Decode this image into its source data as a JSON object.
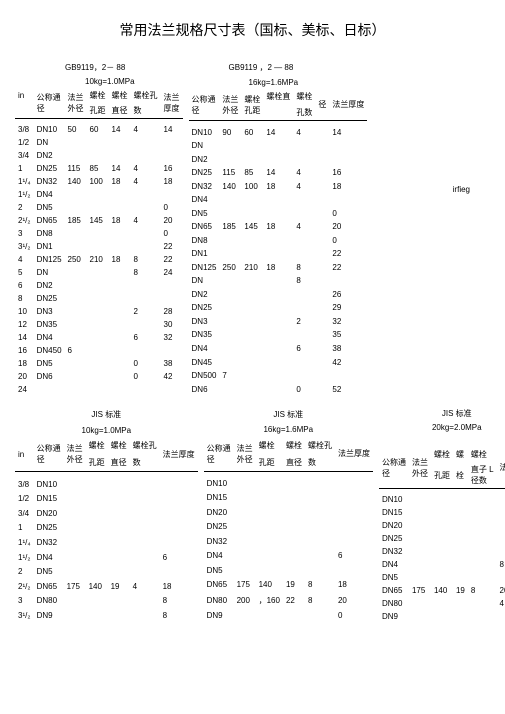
{
  "title": "常用法兰规格尺寸表（国标、美标、日标）",
  "irf": "irfieg",
  "standards": {
    "gb1": {
      "name": "GB9119，2－ 88",
      "pressure": "10kg=1.0MPa"
    },
    "gb2": {
      "name": "GB9119 ，2 — 88",
      "pressure": "16kg=1.6MPa"
    },
    "jis1": {
      "name": "JIS 标准",
      "pressure": "10kg=1.0MPa"
    },
    "jis2": {
      "name": "JIS 标准",
      "pressure": "16kg=1.6MPa"
    },
    "jis3": {
      "name": "JIS 标准",
      "pressure": "20kg=2.0MPa"
    }
  },
  "hdr": {
    "in": "in",
    "dn": "公称通径",
    "flange_od": "法兰外径",
    "bolt_pitch": "螺栓孔距",
    "bolt_dia": "螺栓直径",
    "bolt_n": "螺栓孔数",
    "thick": "法兰厚度",
    "a": "a",
    "bolt": "螺栓",
    "bolt_hole": "螺栓孔",
    "hole_n": "孔数",
    "bolt_hole_dia": "螺栓直径",
    "bolt_hole_pitch": "孔距",
    "bolt_l": "直子 L",
    "bolt_dia_n": "径数"
  },
  "rows_gb1": [
    {
      "in": "3/8",
      "dn": "DN10",
      "a": "50",
      "b": "60",
      "c": "14",
      "d": "4",
      "e": "14"
    },
    {
      "in": "1/2",
      "dn": "DN"
    },
    {
      "in": "3/4",
      "dn": "DN2"
    },
    {
      "in": "1",
      "dn": "DN25",
      "a": "115",
      "b": "85",
      "c": "14",
      "d": "4",
      "e": "16"
    },
    {
      "in": "1¹/₄",
      "dn": "DN32",
      "a": "140",
      "b": "100",
      "c": "18",
      "d": "4",
      "e": "18"
    },
    {
      "in": "1¹/₂",
      "dn": "DN4"
    },
    {
      "in": "2",
      "dn": "DN5",
      "e": "0"
    },
    {
      "in": "2¹/₂",
      "dn": "DN65",
      "a": "185",
      "b": "145",
      "c": "18",
      "d": "4",
      "e": "20"
    },
    {
      "in": "3",
      "dn": "DN8",
      "e": "0"
    },
    {
      "in": "3¹/₂",
      "dn": "DN1",
      "e": "22"
    },
    {
      "in": "4",
      "dn": "DN125",
      "a": "250",
      "b": "210",
      "c": "18",
      "d": "8",
      "e": "22"
    },
    {
      "in": "5",
      "dn": "DN",
      "d": "8",
      "e": "24"
    },
    {
      "in": "6",
      "dn": "DN2"
    },
    {
      "in": "8",
      "dn": "DN25"
    },
    {
      "in": "10",
      "dn": "DN3",
      "d": "2",
      "e": "28"
    },
    {
      "in": "12",
      "dn": "DN35",
      "e": "30"
    },
    {
      "in": "14",
      "dn": "DN4",
      "d": "6",
      "e": "32"
    },
    {
      "in": "16",
      "dn": "DN450",
      "a": "6"
    },
    {
      "in": "18",
      "dn": "DN5",
      "d": "0",
      "e": "38"
    },
    {
      "in": "20",
      "dn": "DN6",
      "d": "0",
      "e": "42"
    },
    {
      "in": "24"
    }
  ],
  "rows_gb2": [
    {
      "dn": "DN10",
      "a": "90",
      "b": "60",
      "c": "14",
      "d": "4",
      "e": "14"
    },
    {
      "dn": "DN"
    },
    {
      "dn": "DN2"
    },
    {
      "dn": "DN25",
      "a": "115",
      "b": "85",
      "c": "14",
      "d": "4",
      "e": "16"
    },
    {
      "dn": "DN32",
      "a": "140",
      "b": "100",
      "c": "18",
      "d": "4",
      "e": "18"
    },
    {
      "dn": "DN4"
    },
    {
      "dn": "DN5",
      "e": "0"
    },
    {
      "dn": "DN65",
      "a": "185",
      "b": "145",
      "c": "18",
      "d": "4",
      "e": "20"
    },
    {
      "dn": "DN8",
      "e": "0"
    },
    {
      "dn": "DN1",
      "e": "22"
    },
    {
      "dn": "DN125",
      "a": "250",
      "b": "210",
      "c": "18",
      "d": "8",
      "e": "22"
    },
    {
      "dn": "DN",
      "d": "8"
    },
    {
      "dn": "DN2",
      "e": "26"
    },
    {
      "dn": "DN25",
      "e": "29"
    },
    {
      "dn": "DN3",
      "d": "2",
      "e": "32"
    },
    {
      "dn": "DN35",
      "e": "35"
    },
    {
      "dn": "DN4",
      "d": "6",
      "e": "38"
    },
    {
      "dn": "DN45",
      "e": "42"
    },
    {
      "dn": "DN500",
      "a": "7"
    },
    {
      "dn": "DN6",
      "d": "0",
      "e": "52"
    }
  ],
  "rows_jis_in": [
    "3/8",
    "1/2",
    "3/4",
    "1",
    "1¹/₄",
    "1¹/₂",
    "2",
    "2¹/₂",
    "3",
    "3¹/₂"
  ],
  "rows_jis_dn": [
    "DN10",
    "DN15",
    "DN20",
    "DN25",
    "DN32",
    "DN4",
    "DN5",
    "DN65",
    "DN80",
    "DN9"
  ],
  "jis1_data": [
    {
      "e": ""
    },
    {},
    {},
    {},
    {},
    {
      "e": "6"
    },
    {},
    {
      "a": "175",
      "b": "140",
      "c": "19",
      "d": "4",
      "e": "18"
    },
    {
      "e": "8"
    },
    {
      "e": "8"
    }
  ],
  "jis2_data": [
    {},
    {},
    {},
    {},
    {},
    {
      "e": "6"
    },
    {},
    {
      "a": "175",
      "b": "140",
      "c": "19",
      "d": "8",
      "e": "18"
    },
    {
      "a": "200",
      "b": "，160",
      "c": "22",
      "d": "8",
      "e": "20"
    },
    {
      "e": "0"
    }
  ],
  "jis3_data": [
    {},
    {},
    {},
    {},
    {},
    {
      "e": "8"
    },
    {},
    {
      "a": "175",
      "b": "140",
      "c": "19",
      "d": "8",
      "e": "20"
    },
    {
      "e": "4"
    },
    {}
  ]
}
